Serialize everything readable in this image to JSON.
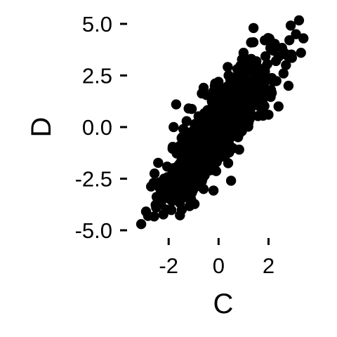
{
  "chart_data": {
    "type": "scatter",
    "xlabel": "C",
    "ylabel": "D",
    "xlim": [
      -3.3,
      3.9
    ],
    "ylim": [
      -5.0,
      5.0
    ],
    "x_ticks": [
      {
        "value": -2,
        "label": "-2"
      },
      {
        "value": 0,
        "label": "0"
      },
      {
        "value": 2,
        "label": "2"
      }
    ],
    "y_ticks": [
      {
        "value": 5.0,
        "label": "5.0"
      },
      {
        "value": 2.5,
        "label": "2.5"
      },
      {
        "value": 0.0,
        "label": "0.0"
      },
      {
        "value": -2.5,
        "label": "-2.5"
      },
      {
        "value": -5.0,
        "label": "-5.0"
      }
    ],
    "grid": false,
    "legend": "none",
    "point_color": "#000000",
    "n_points": 1000,
    "regression": {
      "slope": 1.4,
      "intercept": 0.0,
      "x_sd": 1.0,
      "noise_sd": 0.85
    },
    "outlier_points": [
      {
        "x": -3.1,
        "y": -4.7
      },
      {
        "x": -2.5,
        "y": -3.9
      },
      {
        "x": -2.1,
        "y": -4.0
      },
      {
        "x": -2.6,
        "y": -2.7
      },
      {
        "x": -2.0,
        "y": -3.0
      },
      {
        "x": -1.1,
        "y": -3.5
      },
      {
        "x": -1.5,
        "y": -3.2
      },
      {
        "x": -0.6,
        "y": -3.0
      },
      {
        "x": 0.5,
        "y": -2.6
      },
      {
        "x": -1.8,
        "y": 0.0
      },
      {
        "x": -1.2,
        "y": 0.9
      },
      {
        "x": -1.7,
        "y": 1.1
      },
      {
        "x": -1.3,
        "y": -0.5
      },
      {
        "x": 0.4,
        "y": 2.5
      },
      {
        "x": -0.6,
        "y": 1.9
      },
      {
        "x": 1.4,
        "y": 4.8
      },
      {
        "x": 1.3,
        "y": 4.1
      },
      {
        "x": 1.0,
        "y": 3.6
      },
      {
        "x": 2.3,
        "y": 3.2
      },
      {
        "x": 2.4,
        "y": 3.4
      },
      {
        "x": 3.1,
        "y": 4.5
      },
      {
        "x": 3.4,
        "y": 4.3
      },
      {
        "x": 3.3,
        "y": 3.6
      },
      {
        "x": 2.7,
        "y": 3.0
      },
      {
        "x": 2.8,
        "y": 2.0
      },
      {
        "x": 2.1,
        "y": 1.8
      },
      {
        "x": 2.4,
        "y": 1.0
      },
      {
        "x": 2.0,
        "y": 0.6
      },
      {
        "x": 1.8,
        "y": 1.4
      },
      {
        "x": 2.6,
        "y": 2.6
      }
    ]
  }
}
